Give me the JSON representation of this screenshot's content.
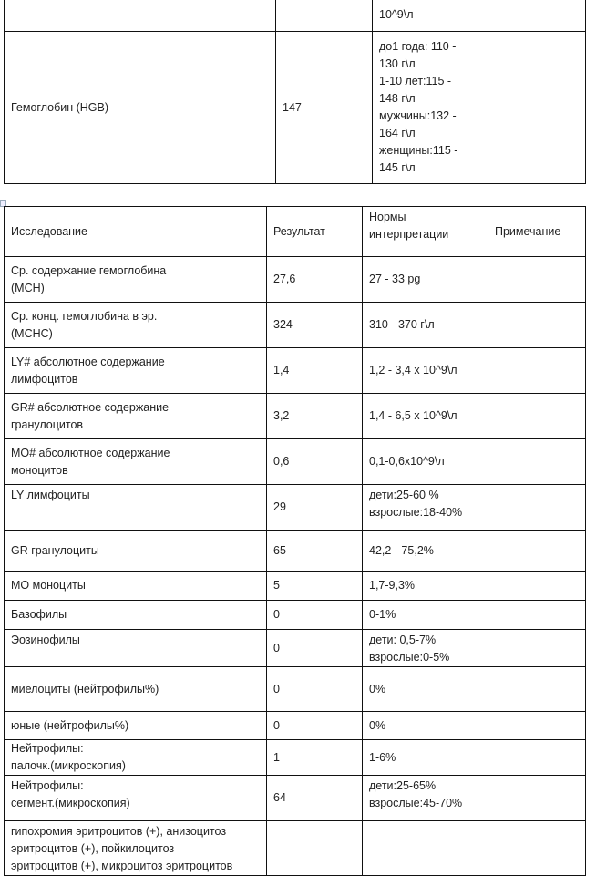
{
  "table_top": {
    "rows": [
      {
        "test": "",
        "result": "",
        "norms": [
          "10^9\\л"
        ],
        "note": ""
      },
      {
        "test": "Гемоглобин (HGB)",
        "result": "147",
        "norms": [
          "до1 года: 110 -",
          "130 г\\л",
          "1-10 лет:115 -",
          "148 г\\л",
          "мужчины:132 -",
          "164 г\\л",
          "женщины:115 -",
          "145 г\\л"
        ],
        "note": ""
      }
    ]
  },
  "table_main": {
    "headers": {
      "test": "Исследование",
      "result": "Результат",
      "norms": [
        "Нормы",
        "интерпретации"
      ],
      "note": "Примечание"
    },
    "rows": [
      {
        "test": [
          "Ср. содержание гемоглобина",
          "(MCH)"
        ],
        "result": "27,6",
        "norms": [
          "27 - 33 pg"
        ],
        "note": ""
      },
      {
        "test": [
          "Ср. конц. гемоглобина в эр.",
          "(MCHC)"
        ],
        "result": "324",
        "norms": [
          "310 - 370 г\\л"
        ],
        "note": ""
      },
      {
        "test": [
          "LY# абсолютное содержание",
          "лимфоцитов"
        ],
        "result": "1,4",
        "norms": [
          "1,2 - 3,4 x 10^9\\л"
        ],
        "note": ""
      },
      {
        "test": [
          "GR# абсолютное содержание",
          "гранулоцитов"
        ],
        "result": "3,2",
        "norms": [
          "1,4 - 6,5 x 10^9\\л"
        ],
        "note": ""
      },
      {
        "test": [
          "MO# абсолютное содержание",
          "моноцитов"
        ],
        "result": "0,6",
        "norms": [
          "0,1-0,6x10^9\\л"
        ],
        "note": ""
      },
      {
        "test": [
          "LY лимфоциты"
        ],
        "result": "29",
        "norms": [
          "дети:25-60 %",
          "взрослые:18-40%"
        ],
        "note": ""
      },
      {
        "test": [
          "GR гранулоциты"
        ],
        "result": "65",
        "norms": [
          "42,2 - 75,2%"
        ],
        "note": ""
      },
      {
        "test": [
          "MO моноциты"
        ],
        "result": "5",
        "norms": [
          "1,7-9,3%"
        ],
        "note": ""
      },
      {
        "test": [
          "Базофилы"
        ],
        "result": "0",
        "norms": [
          "0-1%"
        ],
        "note": ""
      },
      {
        "test": [
          "Эозинофилы"
        ],
        "result": "0",
        "norms": [
          "дети: 0,5-7%",
          "взрослые:0-5%"
        ],
        "note": ""
      },
      {
        "test": [
          "миелоциты (нейтрофилы%)"
        ],
        "result": "0",
        "norms": [
          "0%"
        ],
        "note": ""
      },
      {
        "test": [
          "юные (нейтрофилы%)"
        ],
        "result": "0",
        "norms": [
          "0%"
        ],
        "note": ""
      },
      {
        "test": [
          "Нейтрофилы:",
          "палочк.(микроскопия)"
        ],
        "result": "1",
        "norms": [
          "1-6%"
        ],
        "note": ""
      },
      {
        "test": [
          "Нейтрофилы:",
          "сегмент.(микроскопия)"
        ],
        "result": "64",
        "norms": [
          "дети:25-65%",
          "взрослые:45-70%"
        ],
        "note": ""
      },
      {
        "test": [
          "гипохромия эритроцитов (+), анизоцитоз",
          "эритроцитов (+), пойкилоцитоз",
          "эритроцитов (+), микроцитоз эритроцитов"
        ],
        "result": "",
        "norms": [],
        "note": ""
      }
    ]
  }
}
